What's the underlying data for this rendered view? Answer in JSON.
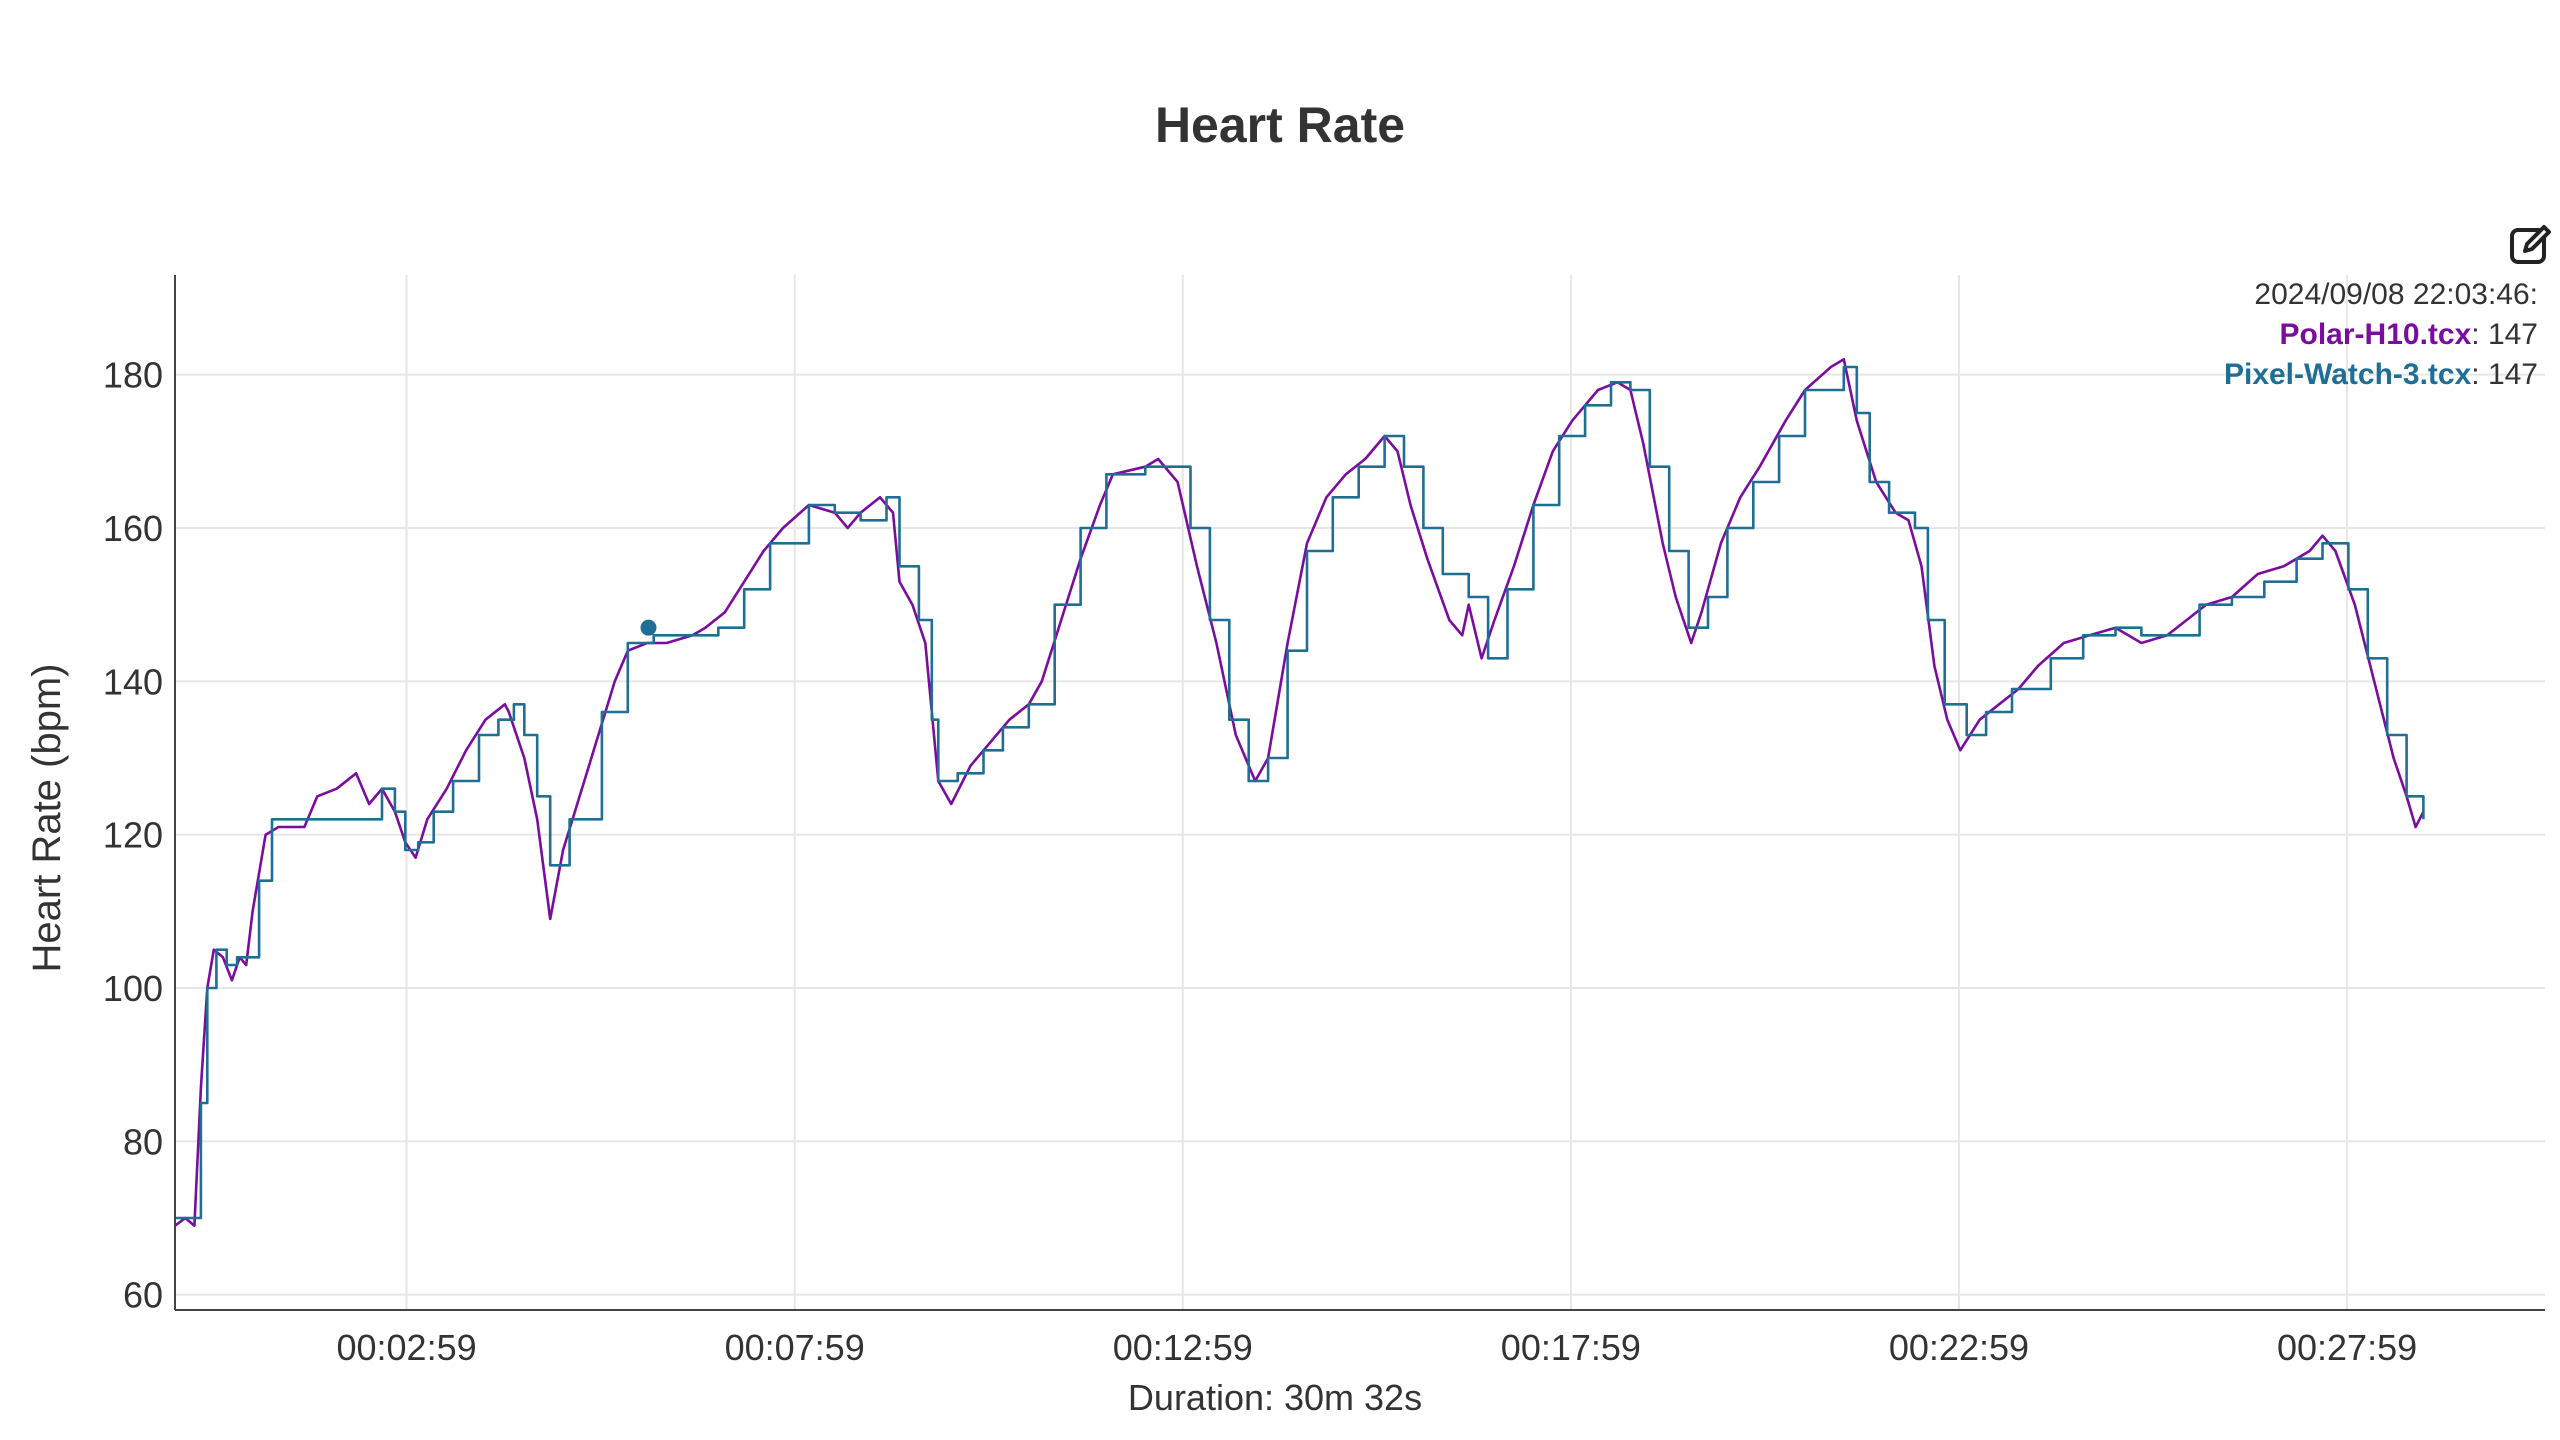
{
  "title": "Heart Rate",
  "toolbar": {
    "edit_icon": "edit-icon"
  },
  "hover": {
    "timestamp": "2024/09/08 22:03:46:",
    "x_seconds": 366,
    "entries": [
      {
        "series": "Polar-H10.tcx",
        "value": "147"
      },
      {
        "series": "Pixel-Watch-3.tcx",
        "value": "147"
      }
    ]
  },
  "colors": {
    "polar": "#7b0d9e",
    "pixel": "#1f6f94",
    "grid": "#e6e6e6",
    "axis": "#444444",
    "text": "#333333"
  },
  "chart_data": {
    "type": "line",
    "title": "Heart Rate",
    "xlabel": "Duration: 30m 32s",
    "ylabel": "Heart Rate (bpm)",
    "xlim": [
      0,
      1832
    ],
    "ylim": [
      58,
      193
    ],
    "grid": true,
    "legend": "top-right (hover tooltip)",
    "x_ticks": [
      179,
      479,
      779,
      1079,
      1379,
      1679
    ],
    "x_tick_labels": [
      "00:02:59",
      "00:07:59",
      "00:12:59",
      "00:17:59",
      "00:22:59",
      "00:27:59"
    ],
    "y_ticks": [
      60,
      80,
      100,
      120,
      140,
      160,
      180
    ],
    "series": [
      {
        "name": "Polar-H10.tcx",
        "color": "#7b0d9e",
        "points": [
          [
            0,
            69
          ],
          [
            8,
            70
          ],
          [
            15,
            69
          ],
          [
            20,
            87
          ],
          [
            25,
            100
          ],
          [
            30,
            105
          ],
          [
            37,
            104
          ],
          [
            44,
            101
          ],
          [
            50,
            104
          ],
          [
            55,
            103
          ],
          [
            60,
            110
          ],
          [
            70,
            120
          ],
          [
            80,
            121
          ],
          [
            100,
            121
          ],
          [
            110,
            125
          ],
          [
            125,
            126
          ],
          [
            140,
            128
          ],
          [
            150,
            124
          ],
          [
            160,
            126
          ],
          [
            170,
            123
          ],
          [
            178,
            119
          ],
          [
            186,
            117
          ],
          [
            195,
            122
          ],
          [
            210,
            126
          ],
          [
            225,
            131
          ],
          [
            240,
            135
          ],
          [
            255,
            137
          ],
          [
            258,
            136
          ],
          [
            270,
            130
          ],
          [
            280,
            122
          ],
          [
            290,
            109
          ],
          [
            300,
            118
          ],
          [
            320,
            129
          ],
          [
            340,
            140
          ],
          [
            350,
            144
          ],
          [
            365,
            145
          ],
          [
            380,
            145
          ],
          [
            400,
            146
          ],
          [
            410,
            147
          ],
          [
            425,
            149
          ],
          [
            440,
            153
          ],
          [
            455,
            157
          ],
          [
            470,
            160
          ],
          [
            490,
            163
          ],
          [
            510,
            162
          ],
          [
            520,
            160
          ],
          [
            530,
            162
          ],
          [
            545,
            164
          ],
          [
            555,
            162
          ],
          [
            560,
            153
          ],
          [
            570,
            150
          ],
          [
            580,
            145
          ],
          [
            590,
            127
          ],
          [
            600,
            124
          ],
          [
            615,
            129
          ],
          [
            630,
            132
          ],
          [
            645,
            135
          ],
          [
            660,
            137
          ],
          [
            670,
            140
          ],
          [
            685,
            148
          ],
          [
            700,
            156
          ],
          [
            715,
            163
          ],
          [
            725,
            167
          ],
          [
            750,
            168
          ],
          [
            760,
            169
          ],
          [
            775,
            166
          ],
          [
            790,
            155
          ],
          [
            805,
            145
          ],
          [
            820,
            133
          ],
          [
            835,
            127
          ],
          [
            845,
            130
          ],
          [
            860,
            145
          ],
          [
            875,
            158
          ],
          [
            890,
            164
          ],
          [
            905,
            167
          ],
          [
            920,
            169
          ],
          [
            935,
            172
          ],
          [
            945,
            170
          ],
          [
            955,
            163
          ],
          [
            968,
            156
          ],
          [
            985,
            148
          ],
          [
            995,
            146
          ],
          [
            1000,
            150
          ],
          [
            1010,
            143
          ],
          [
            1020,
            148
          ],
          [
            1035,
            155
          ],
          [
            1050,
            163
          ],
          [
            1065,
            170
          ],
          [
            1080,
            174
          ],
          [
            1100,
            178
          ],
          [
            1115,
            179
          ],
          [
            1125,
            178
          ],
          [
            1135,
            171
          ],
          [
            1150,
            158
          ],
          [
            1160,
            151
          ],
          [
            1172,
            145
          ],
          [
            1180,
            149
          ],
          [
            1195,
            158
          ],
          [
            1210,
            164
          ],
          [
            1225,
            168
          ],
          [
            1245,
            174
          ],
          [
            1260,
            178
          ],
          [
            1280,
            181
          ],
          [
            1290,
            182
          ],
          [
            1300,
            174
          ],
          [
            1315,
            166
          ],
          [
            1330,
            162
          ],
          [
            1340,
            161
          ],
          [
            1350,
            155
          ],
          [
            1360,
            142
          ],
          [
            1370,
            135
          ],
          [
            1380,
            131
          ],
          [
            1395,
            135
          ],
          [
            1410,
            137
          ],
          [
            1425,
            139
          ],
          [
            1440,
            142
          ],
          [
            1460,
            145
          ],
          [
            1480,
            146
          ],
          [
            1500,
            147
          ],
          [
            1520,
            145
          ],
          [
            1540,
            146
          ],
          [
            1555,
            148
          ],
          [
            1570,
            150
          ],
          [
            1590,
            151
          ],
          [
            1610,
            154
          ],
          [
            1630,
            155
          ],
          [
            1650,
            157
          ],
          [
            1660,
            159
          ],
          [
            1670,
            157
          ],
          [
            1685,
            150
          ],
          [
            1700,
            140
          ],
          [
            1715,
            130
          ],
          [
            1725,
            125
          ],
          [
            1732,
            121
          ],
          [
            1738,
            123
          ]
        ]
      },
      {
        "name": "Pixel-Watch-3.tcx",
        "color": "#1f6f94",
        "points": [
          [
            0,
            70
          ],
          [
            10,
            70
          ],
          [
            20,
            85
          ],
          [
            25,
            100
          ],
          [
            32,
            105
          ],
          [
            40,
            103
          ],
          [
            48,
            104
          ],
          [
            55,
            104
          ],
          [
            65,
            114
          ],
          [
            75,
            122
          ],
          [
            100,
            122
          ],
          [
            150,
            122
          ],
          [
            160,
            126
          ],
          [
            170,
            123
          ],
          [
            178,
            118
          ],
          [
            188,
            119
          ],
          [
            200,
            123
          ],
          [
            215,
            127
          ],
          [
            235,
            133
          ],
          [
            250,
            135
          ],
          [
            262,
            137
          ],
          [
            270,
            133
          ],
          [
            280,
            125
          ],
          [
            290,
            116
          ],
          [
            305,
            122
          ],
          [
            330,
            136
          ],
          [
            350,
            145
          ],
          [
            370,
            146
          ],
          [
            400,
            146
          ],
          [
            420,
            147
          ],
          [
            440,
            152
          ],
          [
            460,
            158
          ],
          [
            490,
            163
          ],
          [
            510,
            162
          ],
          [
            530,
            161
          ],
          [
            550,
            164
          ],
          [
            560,
            155
          ],
          [
            575,
            148
          ],
          [
            585,
            135
          ],
          [
            590,
            127
          ],
          [
            605,
            128
          ],
          [
            625,
            131
          ],
          [
            640,
            134
          ],
          [
            660,
            137
          ],
          [
            680,
            150
          ],
          [
            700,
            160
          ],
          [
            720,
            167
          ],
          [
            750,
            168
          ],
          [
            770,
            168
          ],
          [
            785,
            160
          ],
          [
            800,
            148
          ],
          [
            815,
            135
          ],
          [
            830,
            127
          ],
          [
            845,
            130
          ],
          [
            860,
            144
          ],
          [
            875,
            157
          ],
          [
            895,
            164
          ],
          [
            915,
            168
          ],
          [
            935,
            172
          ],
          [
            950,
            168
          ],
          [
            965,
            160
          ],
          [
            980,
            154
          ],
          [
            1000,
            151
          ],
          [
            1015,
            143
          ],
          [
            1030,
            152
          ],
          [
            1050,
            163
          ],
          [
            1070,
            172
          ],
          [
            1090,
            176
          ],
          [
            1110,
            179
          ],
          [
            1125,
            178
          ],
          [
            1140,
            168
          ],
          [
            1155,
            157
          ],
          [
            1170,
            147
          ],
          [
            1185,
            151
          ],
          [
            1200,
            160
          ],
          [
            1220,
            166
          ],
          [
            1240,
            172
          ],
          [
            1260,
            178
          ],
          [
            1290,
            181
          ],
          [
            1300,
            175
          ],
          [
            1310,
            166
          ],
          [
            1325,
            162
          ],
          [
            1345,
            160
          ],
          [
            1355,
            148
          ],
          [
            1368,
            137
          ],
          [
            1385,
            133
          ],
          [
            1400,
            136
          ],
          [
            1420,
            139
          ],
          [
            1450,
            143
          ],
          [
            1475,
            146
          ],
          [
            1500,
            147
          ],
          [
            1520,
            146
          ],
          [
            1545,
            146
          ],
          [
            1565,
            150
          ],
          [
            1590,
            151
          ],
          [
            1615,
            153
          ],
          [
            1640,
            156
          ],
          [
            1660,
            158
          ],
          [
            1670,
            158
          ],
          [
            1680,
            152
          ],
          [
            1695,
            143
          ],
          [
            1710,
            133
          ],
          [
            1725,
            125
          ],
          [
            1738,
            122
          ]
        ]
      }
    ]
  }
}
